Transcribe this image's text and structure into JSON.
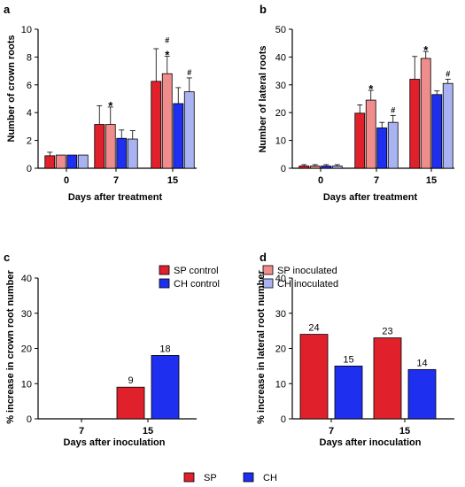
{
  "colors": {
    "sp_control": "#e0202a",
    "sp_inoculated": "#ef8c8c",
    "ch_control": "#1e2ff0",
    "ch_inoculated": "#a9b3f2"
  },
  "legend_top": {
    "items": [
      {
        "key": "sp_control",
        "label": "SP control"
      },
      {
        "key": "sp_inoculated",
        "label": "SP inoculated"
      },
      {
        "key": "ch_control",
        "label": "CH control"
      },
      {
        "key": "ch_inoculated",
        "label": "CH inoculated"
      }
    ]
  },
  "legend_bottom": {
    "items": [
      {
        "key": "sp_control",
        "label": "SP"
      },
      {
        "key": "ch_control",
        "label": "CH"
      }
    ]
  },
  "chart_data": [
    {
      "panel": "a",
      "type": "bar",
      "ylabel": "Number of crown roots",
      "xlabel": "Days after treatment",
      "categories": [
        "0",
        "7",
        "15"
      ],
      "ylim": [
        0,
        10
      ],
      "yticks": [
        0,
        2,
        4,
        6,
        8,
        10
      ],
      "series": [
        {
          "name": "SP control",
          "color_key": "sp_control",
          "values": [
            0.9,
            3.15,
            6.25
          ],
          "errors": [
            0.25,
            1.35,
            2.35
          ]
        },
        {
          "name": "SP inoculated",
          "color_key": "sp_inoculated",
          "values": [
            0.95,
            3.15,
            6.8
          ],
          "errors": [
            0.0,
            1.25,
            1.25
          ]
        },
        {
          "name": "CH control",
          "color_key": "ch_control",
          "values": [
            0.95,
            2.15,
            4.65
          ],
          "errors": [
            0.0,
            0.6,
            1.15
          ]
        },
        {
          "name": "CH inoculated",
          "color_key": "ch_inoculated",
          "values": [
            0.95,
            2.1,
            5.5
          ],
          "errors": [
            0.0,
            0.6,
            1.0
          ]
        }
      ],
      "annotations": [
        {
          "category": 1,
          "series": 1,
          "text": "*"
        },
        {
          "category": 2,
          "series": 1,
          "text": "*"
        },
        {
          "category": 2,
          "series": 1,
          "text": "#"
        },
        {
          "category": 2,
          "series": 3,
          "text": "#"
        }
      ]
    },
    {
      "panel": "b",
      "type": "bar",
      "ylabel": "Number of lateral roots",
      "xlabel": "Days after treatment",
      "categories": [
        "0",
        "7",
        "15"
      ],
      "ylim": [
        0,
        50
      ],
      "yticks": [
        0,
        10,
        20,
        30,
        40,
        50
      ],
      "series": [
        {
          "name": "SP control",
          "color_key": "sp_control",
          "values": [
            0.8,
            19.8,
            32.0
          ],
          "errors": [
            0.5,
            3.0,
            8.2
          ]
        },
        {
          "name": "SP inoculated",
          "color_key": "sp_inoculated",
          "values": [
            0.8,
            24.5,
            39.5
          ],
          "errors": [
            0.5,
            3.5,
            2.5
          ]
        },
        {
          "name": "CH control",
          "color_key": "ch_control",
          "values": [
            0.8,
            14.5,
            26.5
          ],
          "errors": [
            0.5,
            2.0,
            1.3
          ]
        },
        {
          "name": "CH inoculated",
          "color_key": "ch_inoculated",
          "values": [
            0.8,
            16.5,
            30.5
          ],
          "errors": [
            0.5,
            2.5,
            1.5
          ]
        }
      ],
      "annotations": [
        {
          "category": 1,
          "series": 1,
          "text": "*"
        },
        {
          "category": 1,
          "series": 3,
          "text": "#"
        },
        {
          "category": 2,
          "series": 1,
          "text": "*"
        },
        {
          "category": 2,
          "series": 3,
          "text": "#"
        }
      ]
    },
    {
      "panel": "c",
      "type": "bar",
      "ylabel": "% increase in crown root number",
      "xlabel": "Days after inoculation",
      "categories": [
        "7",
        "15"
      ],
      "ylim": [
        0,
        40
      ],
      "yticks": [
        0,
        10,
        20,
        30,
        40
      ],
      "series": [
        {
          "name": "SP",
          "color_key": "sp_control",
          "values": [
            0,
            9
          ],
          "labels": [
            "",
            "9"
          ]
        },
        {
          "name": "CH",
          "color_key": "ch_control",
          "values": [
            0,
            18
          ],
          "labels": [
            "",
            "18"
          ]
        }
      ]
    },
    {
      "panel": "d",
      "type": "bar",
      "ylabel": "% increase in lateral root number",
      "xlabel": "Days after inoculation",
      "categories": [
        "7",
        "15"
      ],
      "ylim": [
        0,
        40
      ],
      "yticks": [
        0,
        10,
        20,
        30,
        40
      ],
      "series": [
        {
          "name": "SP",
          "color_key": "sp_control",
          "values": [
            24,
            23
          ],
          "labels": [
            "24",
            "23"
          ]
        },
        {
          "name": "CH",
          "color_key": "ch_control",
          "values": [
            15,
            14
          ],
          "labels": [
            "15",
            "14"
          ]
        }
      ]
    }
  ]
}
